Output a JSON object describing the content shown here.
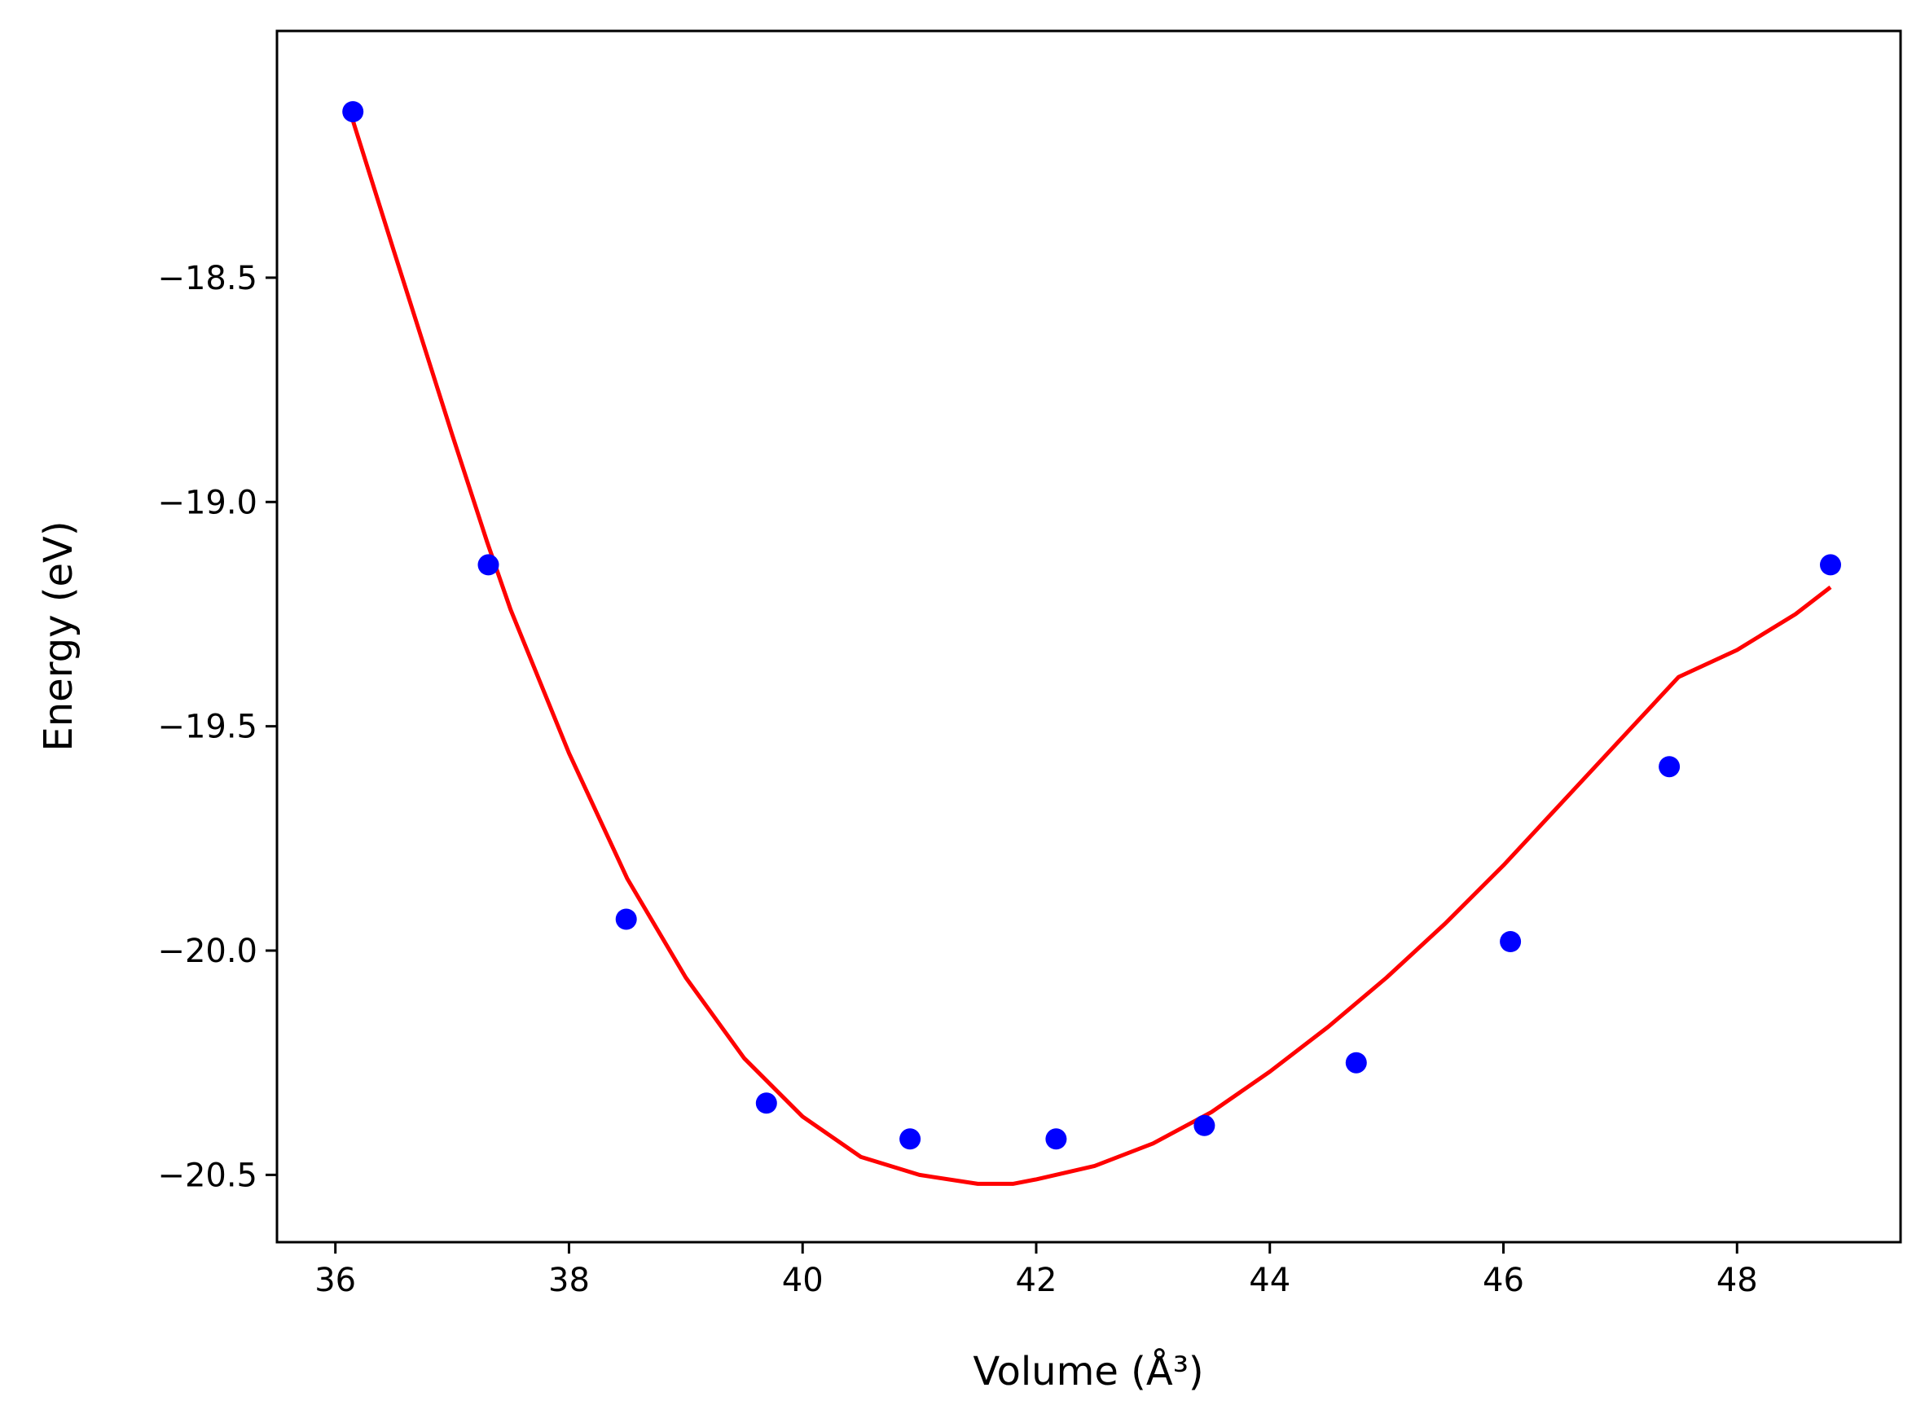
{
  "chart_data": {
    "type": "scatter",
    "title": "",
    "xlabel": "Volume (Å³)",
    "ylabel": "Energy (eV)",
    "xlim": [
      35.5,
      49.4
    ],
    "ylim": [
      -20.65,
      -17.95
    ],
    "grid": false,
    "legend": "none",
    "xticks": [
      36,
      38,
      40,
      42,
      44,
      46,
      48
    ],
    "yticks": [
      -18.5,
      -19.0,
      -19.5,
      -20.0,
      -20.5
    ],
    "xtick_labels": [
      "36",
      "38",
      "40",
      "42",
      "44",
      "46",
      "48"
    ],
    "ytick_labels": [
      "−18.5",
      "−19.0",
      "−19.5",
      "−20.0",
      "−20.5"
    ],
    "series": [
      {
        "kind": "points",
        "color": "#0000ff",
        "x": [
          36.15,
          37.31,
          38.49,
          39.69,
          40.92,
          42.17,
          43.44,
          44.74,
          46.06,
          47.42,
          48.8
        ],
        "y": [
          -18.13,
          -19.14,
          -19.93,
          -20.34,
          -20.42,
          -20.42,
          -20.39,
          -20.25,
          -19.98,
          -19.59,
          -19.14
        ]
      },
      {
        "kind": "line",
        "color": "#ff0000",
        "x": [
          36.15,
          36.5,
          37.0,
          37.3,
          37.5,
          38.0,
          38.5,
          39.0,
          39.5,
          40.0,
          40.5,
          41.0,
          41.5,
          41.8,
          42.0,
          42.5,
          43.0,
          43.5,
          44.0,
          44.5,
          45.0,
          45.5,
          46.0,
          46.5,
          47.0,
          47.5,
          48.0,
          48.5,
          48.8
        ],
        "y": [
          -18.15,
          -18.44,
          -18.85,
          -19.09,
          -19.24,
          -19.56,
          -19.84,
          -20.06,
          -20.24,
          -20.37,
          -20.46,
          -20.5,
          -20.52,
          -20.52,
          -20.51,
          -20.48,
          -20.43,
          -20.36,
          -20.27,
          -20.17,
          -20.06,
          -19.94,
          -19.81,
          -19.67,
          -19.53,
          -19.39,
          -19.33,
          -19.25,
          -19.19
        ]
      }
    ]
  }
}
